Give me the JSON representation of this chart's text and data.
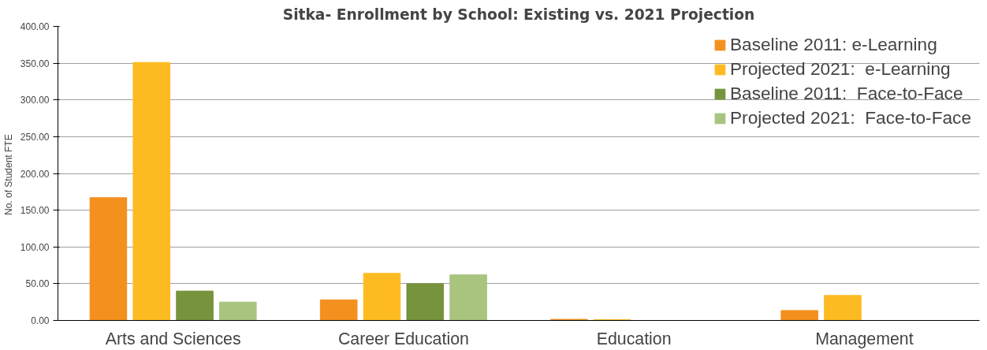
{
  "chart_data": {
    "type": "bar",
    "title": "Sitka- Enrollment by School: Existing vs. 2021 Projection",
    "ylabel": "No. of Student  FTE",
    "categories": [
      "Arts and Sciences",
      "Career Education",
      "Education",
      "Management"
    ],
    "series": [
      {
        "name": "Baseline 2011: e-Learning",
        "color": "#f4901e",
        "values": [
          167,
          28,
          1.5,
          13.5
        ]
      },
      {
        "name": "Projected 2021:  e-Learning",
        "color": "#fdbb21",
        "values": [
          351,
          64,
          1,
          34
        ]
      },
      {
        "name": "Baseline 2011:  Face-to-Face",
        "color": "#77933c",
        "values": [
          40,
          50,
          0,
          0
        ]
      },
      {
        "name": "Projected 2021:  Face-to-Face",
        "color": "#a9c47f",
        "values": [
          25,
          62,
          0,
          0
        ]
      }
    ],
    "ylim": [
      0,
      400
    ],
    "yticks": [
      {
        "value": 0,
        "label": "0.00"
      },
      {
        "value": 50,
        "label": "50.00"
      },
      {
        "value": 100,
        "label": "100.00"
      },
      {
        "value": 150,
        "label": "150.00"
      },
      {
        "value": 200,
        "label": "200.00"
      },
      {
        "value": 250,
        "label": "250.00"
      },
      {
        "value": 300,
        "label": "300.00"
      },
      {
        "value": 350,
        "label": "350.00"
      },
      {
        "value": 400,
        "label": "400.00"
      }
    ],
    "grid": "y",
    "legend": "top right"
  }
}
